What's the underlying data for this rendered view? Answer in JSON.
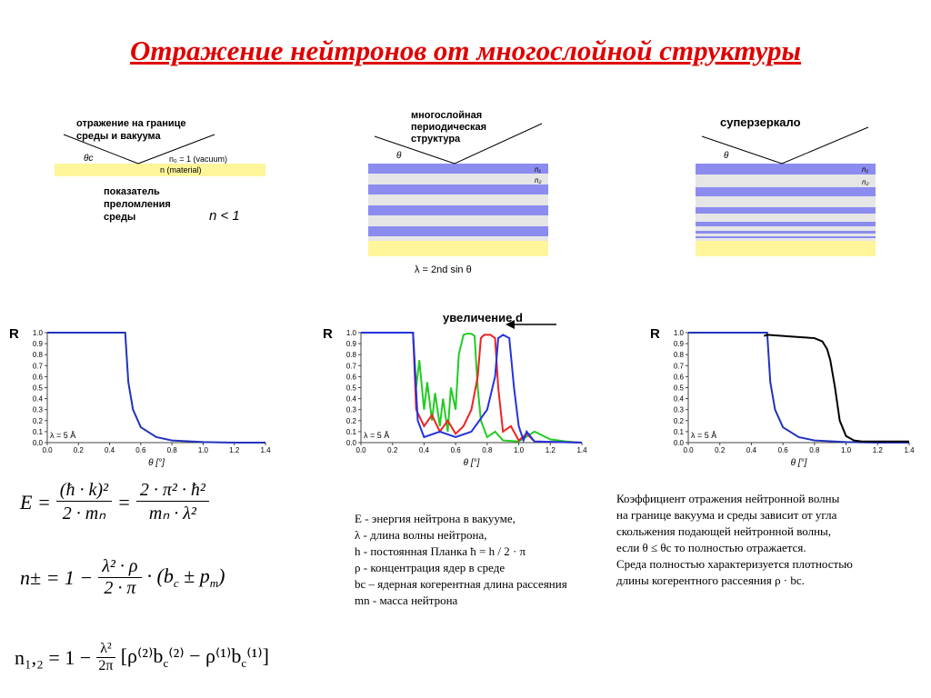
{
  "title": "Отражение нейтронов от многослойной структуры",
  "diagrams": [
    {
      "labels": [
        "отражение на границе",
        "среды и вакуума",
        "θc",
        "n₀ = 1 (vacuum)",
        "n (material)",
        "показатель",
        "преломления",
        "среды",
        "n < 1"
      ]
    },
    {
      "labels": [
        "многослойная",
        "периодическая",
        "структура",
        "θ",
        "n₁",
        "n₂",
        "λ = 2nd sin θ"
      ]
    },
    {
      "labels": [
        "суперзеркало",
        "θ",
        "n₁",
        "n₂"
      ]
    }
  ],
  "chart_data": [
    {
      "type": "line",
      "ylabel": "R",
      "xlabel": "θ [°]",
      "annotation": "λ = 5 Å",
      "xlim": [
        0,
        1.4
      ],
      "ylim": [
        0,
        1
      ],
      "xticks": [
        {
          "value": 0,
          "label": "0.0"
        },
        0.2,
        0.4,
        0.6,
        0.8,
        {
          "value": 1,
          "label": "1.0"
        },
        1.2,
        1.4
      ],
      "yticks": [
        {
          "value": 0,
          "label": "0.0"
        },
        0.1,
        0.2,
        0.3,
        0.4,
        0.5,
        0.6,
        0.7,
        0.8,
        0.9,
        {
          "value": 1,
          "label": "1.0"
        }
      ],
      "series": [
        {
          "color": "#2233bb",
          "x": [
            0,
            0.5,
            0.52,
            0.55,
            0.6,
            0.7,
            0.8,
            1.0,
            1.2,
            1.4
          ],
          "values": [
            1,
            1,
            0.55,
            0.3,
            0.14,
            0.05,
            0.02,
            0.005,
            0,
            0
          ]
        }
      ]
    },
    {
      "type": "line",
      "ylabel": "R",
      "xlabel": "θ [°]",
      "annotation": "λ = 5 Å",
      "arrow_label": "увеличение d",
      "xlim": [
        0,
        1.4
      ],
      "ylim": [
        0,
        1
      ],
      "xticks": [
        {
          "value": 0,
          "label": "0.0"
        },
        0.2,
        0.4,
        0.6,
        0.8,
        {
          "value": 1,
          "label": "1.0"
        },
        1.2,
        1.4
      ],
      "yticks": [
        {
          "value": 0,
          "label": "0.0"
        },
        0.1,
        0.2,
        0.3,
        0.4,
        0.5,
        0.6,
        0.7,
        0.8,
        0.9,
        {
          "value": 1,
          "label": "1.0"
        }
      ],
      "series": [
        {
          "color": "#22cc22",
          "x": [
            0,
            0.33,
            0.35,
            0.37,
            0.4,
            0.42,
            0.45,
            0.47,
            0.5,
            0.52,
            0.55,
            0.57,
            0.6,
            0.62,
            0.65,
            0.67,
            0.7,
            0.72,
            0.74,
            0.76,
            0.8,
            0.85,
            0.9,
            1.0,
            1.1,
            1.2,
            1.3,
            1.4
          ],
          "values": [
            1,
            1,
            0.5,
            0.75,
            0.3,
            0.55,
            0.2,
            0.45,
            0.15,
            0.4,
            0.1,
            0.5,
            0.3,
            0.8,
            0.98,
            0.99,
            0.99,
            0.97,
            0.5,
            0.2,
            0.05,
            0.1,
            0.02,
            0.01,
            0.1,
            0.03,
            0.01,
            0
          ]
        },
        {
          "color": "#ee2222",
          "x": [
            0,
            0.33,
            0.35,
            0.4,
            0.45,
            0.5,
            0.55,
            0.6,
            0.65,
            0.7,
            0.74,
            0.76,
            0.78,
            0.82,
            0.85,
            0.87,
            0.9,
            0.95,
            1.0,
            1.05,
            1.1,
            1.4
          ],
          "values": [
            1,
            1,
            0.3,
            0.15,
            0.25,
            0.1,
            0.2,
            0.08,
            0.15,
            0.3,
            0.6,
            0.95,
            0.98,
            0.98,
            0.95,
            0.5,
            0.1,
            0.15,
            0.02,
            0.08,
            0.01,
            0
          ]
        },
        {
          "color": "#2233dd",
          "x": [
            0,
            0.33,
            0.36,
            0.4,
            0.5,
            0.6,
            0.7,
            0.8,
            0.85,
            0.87,
            0.9,
            0.94,
            0.97,
            1.0,
            1.03,
            1.05,
            1.1,
            1.4
          ],
          "values": [
            1,
            1,
            0.2,
            0.05,
            0.1,
            0.05,
            0.1,
            0.3,
            0.6,
            0.95,
            0.98,
            0.95,
            0.5,
            0.15,
            0.02,
            0.1,
            0.01,
            0
          ]
        }
      ]
    },
    {
      "type": "line",
      "ylabel": "R",
      "xlabel": "θ [°]",
      "annotation": "λ = 5 Å",
      "xlim": [
        0,
        1.4
      ],
      "ylim": [
        0,
        1
      ],
      "xticks": [
        {
          "value": 0,
          "label": "0.0"
        },
        0.2,
        0.4,
        0.6,
        0.8,
        {
          "value": 1,
          "label": "1.0"
        },
        1.2,
        1.4
      ],
      "yticks": [
        {
          "value": 0,
          "label": "0.0"
        },
        0.1,
        0.2,
        0.3,
        0.4,
        0.5,
        0.6,
        0.7,
        0.8,
        0.9,
        {
          "value": 1,
          "label": "1.0"
        }
      ],
      "series": [
        {
          "color": "#2233bb",
          "x": [
            0,
            0.5,
            0.52,
            0.55,
            0.6,
            0.7,
            0.8,
            1.0,
            1.2,
            1.4
          ],
          "values": [
            1,
            1,
            0.55,
            0.3,
            0.14,
            0.05,
            0.02,
            0.005,
            0,
            0
          ]
        },
        {
          "color": "#000000",
          "x": [
            0.48,
            0.5,
            0.6,
            0.7,
            0.8,
            0.85,
            0.88,
            0.9,
            0.93,
            0.96,
            1.0,
            1.05,
            1.1,
            1.2,
            1.3,
            1.4
          ],
          "values": [
            0.97,
            0.98,
            0.97,
            0.96,
            0.95,
            0.92,
            0.85,
            0.75,
            0.5,
            0.2,
            0.06,
            0.02,
            0.01,
            0.01,
            0.01,
            0.01
          ]
        }
      ]
    }
  ],
  "formulas": {
    "energy": {
      "lhs": "E =",
      "num1": "(ħ · k)²",
      "den1": "2 · mₙ",
      "eq": "=",
      "num2": "2 · π² · ħ²",
      "den2": "mₙ · λ²"
    },
    "index": {
      "lhs": "n± = 1 −",
      "num": "λ² · ρ",
      "den": "2 · π",
      "tail": [
        "· (b",
        "c",
        " ± p",
        "m",
        ")"
      ]
    },
    "index12": {
      "lhs": "n₁,₂ = 1 −",
      "num": "λ²",
      "den": "2π",
      "tail": [
        "[ρ⁽²⁾b",
        "c",
        "⁽²⁾ − ρ⁽¹⁾b",
        "c",
        "⁽¹⁾]"
      ]
    }
  },
  "legend": [
    "E  - энергия нейтрона в вакууме,",
    "λ  -  длина волны нейтрона,",
    "h  - постоянная Планка ħ = h / 2 · π",
    "ρ  - концентрация ядер в среде",
    "bc  – ядерная когерентная длина рассеяния",
    "mn -  масса нейтрона"
  ],
  "description": [
    "Коэффициент отражения нейтронной волны",
    " на границе вакуума и среды зависит от угла",
    "скольжения подающей нейтронной волны,",
    "если   θ ≤ θc  то  полностью отражается.",
    "Среда полностью характеризуется плотностью",
    "длины когерентного рассеяния   ρ · bc."
  ]
}
